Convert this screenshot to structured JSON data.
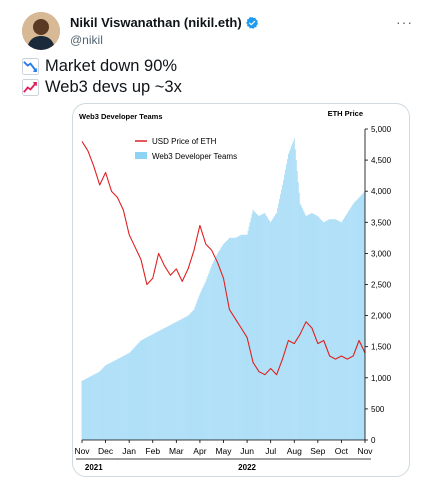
{
  "tweet": {
    "author_name": "Nikil Viswanathan (nikil.eth)",
    "handle": "@nikil",
    "more_label": "···",
    "lines": [
      {
        "icon": "chart-decreasing-icon",
        "text": "Market down 90%"
      },
      {
        "icon": "chart-increasing-icon",
        "text": "Web3 devs up ~3x"
      }
    ]
  },
  "colors": {
    "bar": "#8fd3f4",
    "line": "#e02020",
    "verified": "#1d9bf0"
  },
  "chart_data": {
    "type": "bar+line",
    "title": "Web3 Developer Teams",
    "y2_title": "ETH Price",
    "legend": [
      {
        "name": "USD Price of ETH",
        "kind": "line"
      },
      {
        "name": "Web3 Developer Teams",
        "kind": "bar"
      }
    ],
    "legend_position": "top-center",
    "x_categories": [
      "Nov",
      "Dec",
      "Jan",
      "Feb",
      "Mar",
      "Apr",
      "May",
      "Jun",
      "Jul",
      "Aug",
      "Sep",
      "Oct",
      "Nov"
    ],
    "year_labels": [
      "2021",
      "2022"
    ],
    "y_right_ticks": [
      "0",
      "500",
      "1,000",
      "1,500",
      "2,000",
      "2,500",
      "3,000",
      "3,500",
      "4,000",
      "4,500",
      "5,000"
    ],
    "y_right_range": [
      0,
      5000
    ],
    "grid": false,
    "series": [
      {
        "name": "USD Price of ETH",
        "kind": "line",
        "x": [
          0,
          0.25,
          0.5,
          0.75,
          1,
          1.25,
          1.5,
          1.75,
          2,
          2.25,
          2.5,
          2.75,
          3,
          3.25,
          3.5,
          3.75,
          4,
          4.25,
          4.5,
          4.75,
          5,
          5.25,
          5.5,
          5.75,
          6,
          6.25,
          6.5,
          6.75,
          7,
          7.25,
          7.5,
          7.75,
          8,
          8.25,
          8.5,
          8.75,
          9,
          9.25,
          9.5,
          9.75,
          10,
          10.25,
          10.5,
          10.75,
          11,
          11.25,
          11.5,
          11.75,
          12
        ],
        "values": [
          4800,
          4650,
          4400,
          4100,
          4300,
          4000,
          3900,
          3700,
          3300,
          3100,
          2900,
          2500,
          2600,
          3000,
          2800,
          2650,
          2750,
          2550,
          2750,
          3050,
          3450,
          3150,
          3050,
          2850,
          2600,
          2100,
          1950,
          1800,
          1650,
          1250,
          1100,
          1050,
          1150,
          1050,
          1300,
          1600,
          1550,
          1700,
          1900,
          1800,
          1550,
          1600,
          1350,
          1300,
          1350,
          1300,
          1350,
          1600,
          1400
        ]
      },
      {
        "name": "Web3 Developer Teams",
        "kind": "bar",
        "x": [
          0,
          0.25,
          0.5,
          0.75,
          1,
          1.25,
          1.5,
          1.75,
          2,
          2.25,
          2.5,
          2.75,
          3,
          3.25,
          3.5,
          3.75,
          4,
          4.25,
          4.5,
          4.75,
          5,
          5.25,
          5.5,
          5.75,
          6,
          6.25,
          6.5,
          6.75,
          7,
          7.25,
          7.5,
          7.75,
          8,
          8.25,
          8.5,
          8.75,
          9,
          9.25,
          9.5,
          9.75,
          10,
          10.25,
          10.5,
          10.75,
          11,
          11.25,
          11.5,
          11.75,
          12
        ],
        "values": [
          950,
          1000,
          1050,
          1100,
          1200,
          1250,
          1300,
          1350,
          1400,
          1500,
          1600,
          1650,
          1700,
          1750,
          1800,
          1850,
          1900,
          1950,
          2000,
          2100,
          2350,
          2550,
          2800,
          3000,
          3150,
          3250,
          3250,
          3300,
          3300,
          3700,
          3600,
          3650,
          3500,
          3650,
          4100,
          4600,
          4850,
          3800,
          3600,
          3650,
          3600,
          3500,
          3550,
          3550,
          3500,
          3650,
          3800,
          3900,
          4000
        ]
      }
    ]
  }
}
